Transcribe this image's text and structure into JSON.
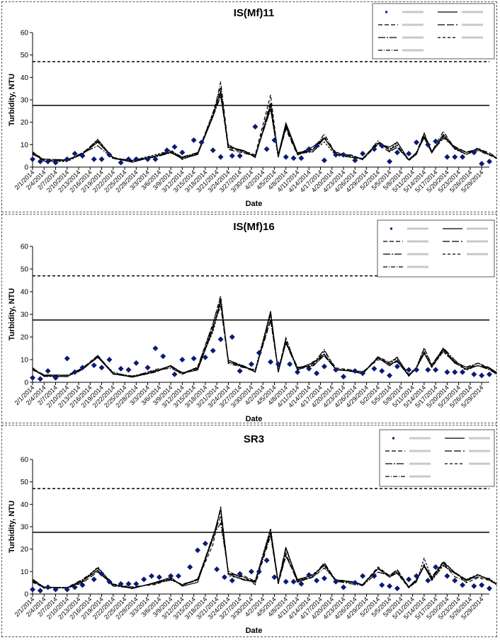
{
  "chart_data": [
    {
      "type": "line",
      "title": "IS(Mf)11",
      "xlabel": "Date",
      "ylabel": "Turbidity, NTU",
      "ylim": [
        0,
        60
      ],
      "yticks": [
        "0",
        "10",
        "20",
        "30",
        "40",
        "50",
        "60"
      ],
      "grid": false,
      "legend_placement": "top-right",
      "x_start": "2/1/2014",
      "x_end": "5/31/2014",
      "xtick_labels": [
        "2/1/2014",
        "2/4/2014",
        "2/7/2014",
        "2/10/2014",
        "2/13/2014",
        "2/16/2014",
        "2/19/2014",
        "2/22/2014",
        "2/25/2014",
        "2/28/2014",
        "3/3/2014",
        "3/6/2014",
        "3/9/2014",
        "3/12/2014",
        "3/15/2014",
        "3/18/2014",
        "3/21/2014",
        "3/24/2014",
        "3/27/2014",
        "3/30/2014",
        "4/2/2014",
        "4/5/2014",
        "4/8/2014",
        "4/11/2014",
        "4/14/2014",
        "4/17/2014",
        "4/20/2014",
        "4/23/2014",
        "4/26/2014",
        "4/29/2014",
        "5/2/2014",
        "5/5/2014",
        "5/8/2014",
        "5/11/2014",
        "5/14/2014",
        "5/17/2014",
        "5/20/2014",
        "5/23/2014",
        "5/26/2014",
        "5/29/2014"
      ],
      "hlines": [
        {
          "value": 27.5,
          "style": "solid"
        },
        {
          "value": 47,
          "style": "dashed"
        }
      ],
      "points": [
        [
          "2/1/2014",
          3.5
        ],
        [
          "2/3/2014",
          2.5
        ],
        [
          "2/5/2014",
          2.5
        ],
        [
          "2/7/2014",
          2
        ],
        [
          "2/10/2014",
          3.5
        ],
        [
          "2/12/2014",
          6
        ],
        [
          "2/14/2014",
          5
        ],
        [
          "2/17/2014",
          3.5
        ],
        [
          "2/19/2014",
          3.5
        ],
        [
          "2/21/2014",
          5.5
        ],
        [
          "2/24/2014",
          2
        ],
        [
          "2/26/2014",
          3.5
        ],
        [
          "2/28/2014",
          3.5
        ],
        [
          "3/3/2014",
          3.5
        ],
        [
          "3/5/2014",
          3.5
        ],
        [
          "3/8/2014",
          7.5
        ],
        [
          "3/10/2014",
          9
        ],
        [
          "3/12/2014",
          6.5
        ],
        [
          "3/15/2014",
          12
        ],
        [
          "3/17/2014",
          11
        ],
        [
          "3/20/2014",
          7.5
        ],
        [
          "3/22/2014",
          4.5
        ],
        [
          "3/25/2014",
          5
        ],
        [
          "3/27/2014",
          5
        ],
        [
          "3/31/2014",
          18
        ],
        [
          "4/3/2014",
          8
        ],
        [
          "4/5/2014",
          12
        ],
        [
          "4/8/2014",
          4.5
        ],
        [
          "4/10/2014",
          4
        ],
        [
          "4/12/2014",
          4
        ],
        [
          "4/14/2014",
          8
        ],
        [
          "4/16/2014",
          9.5
        ],
        [
          "4/18/2014",
          3
        ],
        [
          "4/21/2014",
          5.5
        ],
        [
          "4/23/2014",
          5.5
        ],
        [
          "4/26/2014",
          3
        ],
        [
          "4/28/2014",
          6
        ],
        [
          "5/1/2014",
          8
        ],
        [
          "5/3/2014",
          9.5
        ],
        [
          "5/5/2014",
          2.5
        ],
        [
          "5/7/2014",
          6.5
        ],
        [
          "5/10/2014",
          6
        ],
        [
          "5/12/2014",
          11
        ],
        [
          "5/15/2014",
          10
        ],
        [
          "5/17/2014",
          11.5
        ],
        [
          "5/20/2014",
          4.5
        ],
        [
          "5/22/2014",
          4.5
        ],
        [
          "5/24/2014",
          4.5
        ],
        [
          "5/27/2014",
          6.5
        ],
        [
          "5/29/2014",
          1.5
        ],
        [
          "5/31/2014",
          2.5
        ]
      ]
    },
    {
      "type": "line",
      "title": "IS(Mf)16",
      "xlabel": "Date",
      "ylabel": "Turbidity, NTU",
      "ylim": [
        0,
        60
      ],
      "yticks": [
        "0",
        "10",
        "20",
        "30",
        "40",
        "50",
        "60"
      ],
      "grid": false,
      "legend_placement": "top-right",
      "x_start": "2/1/2014",
      "x_end": "5/31/2014",
      "xtick_labels": [
        "2/1/2014",
        "2/4/2014",
        "2/7/2014",
        "2/10/2014",
        "2/13/2014",
        "2/16/2014",
        "2/19/2014",
        "2/22/2014",
        "2/25/2014",
        "2/28/2014",
        "3/3/2014",
        "3/6/2014",
        "3/9/2014",
        "3/12/2014",
        "3/15/2014",
        "3/18/2014",
        "3/21/2014",
        "3/24/2014",
        "3/27/2014",
        "3/30/2014",
        "4/2/2014",
        "4/5/2014",
        "4/8/2014",
        "4/11/2014",
        "4/14/2014",
        "4/17/2014",
        "4/20/2014",
        "4/23/2014",
        "4/26/2014",
        "4/29/2014",
        "5/2/2014",
        "5/5/2014",
        "5/8/2014",
        "5/11/2014",
        "5/14/2014",
        "5/17/2014",
        "5/20/2014",
        "5/23/2014",
        "5/26/2014",
        "5/29/2014"
      ],
      "hlines": [
        {
          "value": 27.5,
          "style": "solid"
        },
        {
          "value": 47,
          "style": "dashed"
        }
      ],
      "points": [
        [
          "2/1/2014",
          2
        ],
        [
          "2/3/2014",
          1.5
        ],
        [
          "2/5/2014",
          5
        ],
        [
          "2/7/2014",
          2
        ],
        [
          "2/10/2014",
          10.5
        ],
        [
          "2/12/2014",
          4.5
        ],
        [
          "2/14/2014",
          6.5
        ],
        [
          "2/17/2014",
          7.5
        ],
        [
          "2/19/2014",
          6.5
        ],
        [
          "2/21/2014",
          10
        ],
        [
          "2/24/2014",
          6
        ],
        [
          "2/26/2014",
          5.5
        ],
        [
          "2/28/2014",
          8.5
        ],
        [
          "3/3/2014",
          6.5
        ],
        [
          "3/5/2014",
          15
        ],
        [
          "3/7/2014",
          11.5
        ],
        [
          "3/10/2014",
          3.5
        ],
        [
          "3/12/2014",
          10
        ],
        [
          "3/15/2014",
          10.5
        ],
        [
          "3/18/2014",
          11
        ],
        [
          "3/20/2014",
          14
        ],
        [
          "3/22/2014",
          19
        ],
        [
          "3/25/2014",
          20
        ],
        [
          "3/27/2014",
          5
        ],
        [
          "3/30/2014",
          8
        ],
        [
          "4/1/2014",
          13
        ],
        [
          "4/4/2014",
          9
        ],
        [
          "4/6/2014",
          8
        ],
        [
          "4/9/2014",
          8
        ],
        [
          "4/11/2014",
          4.5
        ],
        [
          "4/14/2014",
          6
        ],
        [
          "4/16/2014",
          4
        ],
        [
          "4/18/2014",
          7
        ],
        [
          "4/21/2014",
          5.5
        ],
        [
          "4/23/2014",
          2.5
        ],
        [
          "4/26/2014",
          5
        ],
        [
          "4/28/2014",
          4
        ],
        [
          "5/1/2014",
          6
        ],
        [
          "5/3/2014",
          5
        ],
        [
          "5/5/2014",
          3
        ],
        [
          "5/7/2014",
          7
        ],
        [
          "5/10/2014",
          5.5
        ],
        [
          "5/12/2014",
          5.5
        ],
        [
          "5/15/2014",
          5.5
        ],
        [
          "5/17/2014",
          5.5
        ],
        [
          "5/20/2014",
          4.5
        ],
        [
          "5/22/2014",
          4.5
        ],
        [
          "5/24/2014",
          4.5
        ],
        [
          "5/27/2014",
          3.5
        ],
        [
          "5/29/2014",
          3
        ],
        [
          "5/31/2014",
          3.5
        ]
      ]
    },
    {
      "type": "line",
      "title": "SR3",
      "xlabel": "Date",
      "ylabel": "Turbidity, NTU",
      "ylim": [
        0,
        60
      ],
      "yticks": [
        "0",
        "10",
        "20",
        "30",
        "40",
        "50",
        "60"
      ],
      "grid": false,
      "legend_placement": "top-right",
      "x_start": "2/1/2014",
      "x_end": "5/31/2014",
      "xtick_labels": [
        "2/1/2014",
        "2/4/2014",
        "2/7/2014",
        "2/10/2014",
        "2/13/2014",
        "2/16/2014",
        "2/19/2014",
        "2/22/2014",
        "2/25/2014",
        "2/28/2014",
        "3/3/2014",
        "3/6/2014",
        "3/9/2014",
        "3/12/2014",
        "3/15/2014",
        "3/18/2014",
        "3/21/2014",
        "3/24/2014",
        "3/27/2014",
        "3/30/2014",
        "4/2/2014",
        "4/5/2014",
        "4/8/2014",
        "4/11/2014",
        "4/14/2014",
        "4/17/2014",
        "4/20/2014",
        "4/23/2014",
        "4/26/2014",
        "4/29/2014",
        "5/2/2014",
        "5/5/2014",
        "5/8/2014",
        "5/11/2014",
        "5/14/2014",
        "5/17/2014",
        "5/20/2014",
        "5/23/2014",
        "5/26/2014",
        "5/29/2014"
      ],
      "hlines": [
        {
          "value": 27.5,
          "style": "solid"
        },
        {
          "value": 47,
          "style": "dashed"
        }
      ],
      "points": [
        [
          "2/1/2014",
          2
        ],
        [
          "2/3/2014",
          1.5
        ],
        [
          "2/5/2014",
          3
        ],
        [
          "2/7/2014",
          2
        ],
        [
          "2/10/2014",
          2
        ],
        [
          "2/12/2014",
          3
        ],
        [
          "2/14/2014",
          4
        ],
        [
          "2/17/2014",
          6.5
        ],
        [
          "2/19/2014",
          9
        ],
        [
          "2/21/2014",
          5.5
        ],
        [
          "2/24/2014",
          4.5
        ],
        [
          "2/26/2014",
          4.5
        ],
        [
          "2/28/2014",
          4.5
        ],
        [
          "3/2/2014",
          6.5
        ],
        [
          "3/4/2014",
          8
        ],
        [
          "3/6/2014",
          7.5
        ],
        [
          "3/9/2014",
          8
        ],
        [
          "3/11/2014",
          8
        ],
        [
          "3/14/2014",
          12
        ],
        [
          "3/16/2014",
          19.5
        ],
        [
          "3/18/2014",
          22.5
        ],
        [
          "3/21/2014",
          11
        ],
        [
          "3/23/2014",
          7.5
        ],
        [
          "3/25/2014",
          6
        ],
        [
          "3/27/2014",
          9
        ],
        [
          "3/30/2014",
          10
        ],
        [
          "4/1/2014",
          10
        ],
        [
          "4/3/2014",
          15
        ],
        [
          "4/5/2014",
          7.5
        ],
        [
          "4/8/2014",
          5.5
        ],
        [
          "4/10/2014",
          5.5
        ],
        [
          "4/12/2014",
          4.5
        ],
        [
          "4/14/2014",
          8.5
        ],
        [
          "4/16/2014",
          6
        ],
        [
          "4/18/2014",
          7
        ],
        [
          "4/21/2014",
          5.5
        ],
        [
          "4/23/2014",
          3
        ],
        [
          "4/26/2014",
          5
        ],
        [
          "4/28/2014",
          8
        ],
        [
          "5/1/2014",
          8
        ],
        [
          "5/3/2014",
          4
        ],
        [
          "5/5/2014",
          3.5
        ],
        [
          "5/7/2014",
          2.5
        ],
        [
          "5/10/2014",
          6.5
        ],
        [
          "5/12/2014",
          8
        ],
        [
          "5/15/2014",
          6
        ],
        [
          "5/17/2014",
          12
        ],
        [
          "5/20/2014",
          8
        ],
        [
          "5/22/2014",
          6
        ],
        [
          "5/24/2014",
          4
        ],
        [
          "5/27/2014",
          3.5
        ],
        [
          "5/29/2014",
          4
        ],
        [
          "5/31/2014",
          2.5
        ]
      ]
    }
  ],
  "colors": {
    "points": "#0a1a73",
    "lines": "#000000",
    "panel_border": "#555555"
  }
}
